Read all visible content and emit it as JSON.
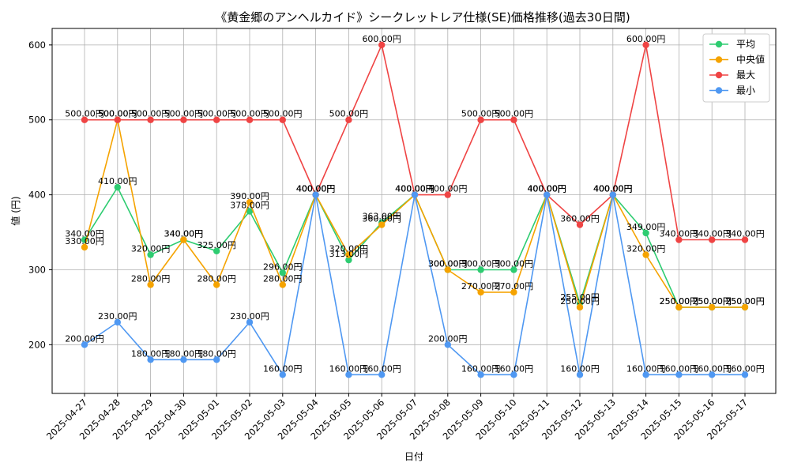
{
  "chart_data": {
    "type": "line",
    "title": "《黄金郷のアンヘルカイド》シークレットレア仕様(SE)価格推移(過去30日間)",
    "xlabel": "日付",
    "ylabel": "値 (円)",
    "ylim": [
      135,
      622
    ],
    "yticks": [
      200,
      300,
      400,
      500,
      600
    ],
    "grid": true,
    "legend_position": "top-right",
    "label_suffix": "円",
    "categories": [
      "2025-04-27",
      "2025-04-28",
      "2025-04-29",
      "2025-04-30",
      "2025-05-01",
      "2025-05-02",
      "2025-05-03",
      "2025-05-04",
      "2025-05-05",
      "2025-05-06",
      "2025-05-07",
      "2025-05-08",
      "2025-05-09",
      "2025-05-10",
      "2025-05-11",
      "2025-05-12",
      "2025-05-13",
      "2025-05-14",
      "2025-05-15",
      "2025-05-16",
      "2025-05-17"
    ],
    "series": [
      {
        "name": "平均",
        "color": "#2ecc71",
        "values": [
          340,
          410,
          320,
          340,
          325,
          378,
          296,
          400,
          313,
          363,
          400,
          300,
          300,
          300,
          400,
          255,
          400,
          349,
          250,
          250,
          250
        ]
      },
      {
        "name": "中央値",
        "color": "#f5a300",
        "values": [
          330,
          500,
          280,
          340,
          280,
          390,
          280,
          400,
          320,
          360,
          400,
          300,
          270,
          270,
          400,
          250,
          400,
          320,
          250,
          250,
          250
        ]
      },
      {
        "name": "最大",
        "color": "#ef4444",
        "values": [
          500,
          500,
          500,
          500,
          500,
          500,
          500,
          400,
          500,
          600,
          400,
          400,
          500,
          500,
          400,
          360,
          400,
          600,
          340,
          340,
          340
        ]
      },
      {
        "name": "最小",
        "color": "#4f98f2",
        "values": [
          200,
          230,
          180,
          180,
          180,
          230,
          160,
          400,
          160,
          160,
          400,
          200,
          160,
          160,
          400,
          160,
          400,
          160,
          160,
          160,
          160
        ]
      }
    ]
  }
}
